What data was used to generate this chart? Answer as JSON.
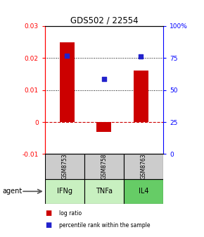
{
  "title": "GDS502 / 22554",
  "samples": [
    "GSM8753",
    "GSM8758",
    "GSM8763"
  ],
  "agents": [
    "IFNg",
    "TNFa",
    "IL4"
  ],
  "log_ratios": [
    0.025,
    -0.003,
    0.016
  ],
  "percentile_ranks": [
    0.77,
    0.585,
    0.765
  ],
  "bar_color": "#cc0000",
  "dot_color": "#2222cc",
  "left_ylim": [
    -0.01,
    0.03
  ],
  "right_ylim": [
    0,
    1.0
  ],
  "right_yticks": [
    0,
    0.25,
    0.5,
    0.75,
    1.0
  ],
  "right_yticklabels": [
    "0",
    "25",
    "50",
    "75",
    "100%"
  ],
  "left_yticks": [
    -0.01,
    0,
    0.01,
    0.02,
    0.03
  ],
  "left_yticklabels": [
    "-0.01",
    "0",
    "0.01",
    "0.02",
    "0.03"
  ],
  "hlines_dotted": [
    0.01,
    0.02
  ],
  "hline_dashed_red": 0,
  "sample_bg_color": "#cccccc",
  "agent_colors": [
    "#c8f0c0",
    "#c8f0c0",
    "#66cc66"
  ],
  "bar_width": 0.4,
  "legend_bar_label": "log ratio",
  "legend_dot_label": "percentile rank within the sample"
}
